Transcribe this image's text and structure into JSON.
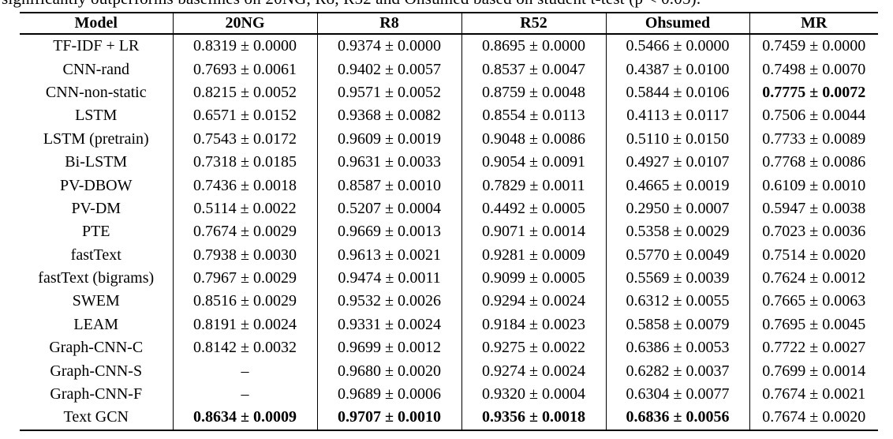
{
  "caption": {
    "clipped_line": "significantly outperforms baselines on 20NG, R8, R52 and Ohsumed based on student t-test (p < 0.05)."
  },
  "colors": {
    "text": "#000000",
    "background": "#ffffff",
    "rule": "#000000"
  },
  "table": {
    "columns": [
      {
        "key": "model",
        "label": "Model"
      },
      {
        "key": "20ng",
        "label": "20NG"
      },
      {
        "key": "r8",
        "label": "R8"
      },
      {
        "key": "r52",
        "label": "R52"
      },
      {
        "key": "ohsumed",
        "label": "Ohsumed"
      },
      {
        "key": "mr",
        "label": "MR"
      }
    ],
    "rows": [
      {
        "cells": [
          {
            "text": "TF-IDF + LR",
            "bold": false
          },
          {
            "text": "0.8319 ± 0.0000",
            "bold": false
          },
          {
            "text": "0.9374 ± 0.0000",
            "bold": false
          },
          {
            "text": "0.8695 ± 0.0000",
            "bold": false
          },
          {
            "text": "0.5466 ± 0.0000",
            "bold": false
          },
          {
            "text": "0.7459 ± 0.0000",
            "bold": false
          }
        ]
      },
      {
        "cells": [
          {
            "text": "CNN-rand",
            "bold": false
          },
          {
            "text": "0.7693 ± 0.0061",
            "bold": false
          },
          {
            "text": "0.9402 ± 0.0057",
            "bold": false
          },
          {
            "text": "0.8537 ± 0.0047",
            "bold": false
          },
          {
            "text": "0.4387 ± 0.0100",
            "bold": false
          },
          {
            "text": "0.7498 ± 0.0070",
            "bold": false
          }
        ]
      },
      {
        "cells": [
          {
            "text": "CNN-non-static",
            "bold": false
          },
          {
            "text": "0.8215 ± 0.0052",
            "bold": false
          },
          {
            "text": "0.9571 ± 0.0052",
            "bold": false
          },
          {
            "text": "0.8759 ± 0.0048",
            "bold": false
          },
          {
            "text": "0.5844 ± 0.0106",
            "bold": false
          },
          {
            "text": "0.7775 ± 0.0072",
            "bold": true
          }
        ]
      },
      {
        "cells": [
          {
            "text": "LSTM",
            "bold": false
          },
          {
            "text": "0.6571 ± 0.0152",
            "bold": false
          },
          {
            "text": "0.9368 ± 0.0082",
            "bold": false
          },
          {
            "text": "0.8554 ± 0.0113",
            "bold": false
          },
          {
            "text": "0.4113 ± 0.0117",
            "bold": false
          },
          {
            "text": "0.7506 ± 0.0044",
            "bold": false
          }
        ]
      },
      {
        "cells": [
          {
            "text": "LSTM (pretrain)",
            "bold": false
          },
          {
            "text": "0.7543 ± 0.0172",
            "bold": false
          },
          {
            "text": "0.9609 ± 0.0019",
            "bold": false
          },
          {
            "text": "0.9048 ± 0.0086",
            "bold": false
          },
          {
            "text": "0.5110 ± 0.0150",
            "bold": false
          },
          {
            "text": "0.7733 ± 0.0089",
            "bold": false
          }
        ]
      },
      {
        "cells": [
          {
            "text": "Bi-LSTM",
            "bold": false
          },
          {
            "text": "0.7318 ± 0.0185",
            "bold": false
          },
          {
            "text": "0.9631 ± 0.0033",
            "bold": false
          },
          {
            "text": "0.9054 ± 0.0091",
            "bold": false
          },
          {
            "text": "0.4927 ± 0.0107",
            "bold": false
          },
          {
            "text": "0.7768 ± 0.0086",
            "bold": false
          }
        ]
      },
      {
        "cells": [
          {
            "text": "PV-DBOW",
            "bold": false
          },
          {
            "text": "0.7436 ± 0.0018",
            "bold": false
          },
          {
            "text": "0.8587 ± 0.0010",
            "bold": false
          },
          {
            "text": "0.7829 ± 0.0011",
            "bold": false
          },
          {
            "text": "0.4665 ± 0.0019",
            "bold": false
          },
          {
            "text": "0.6109 ± 0.0010",
            "bold": false
          }
        ]
      },
      {
        "cells": [
          {
            "text": "PV-DM",
            "bold": false
          },
          {
            "text": "0.5114 ± 0.0022",
            "bold": false
          },
          {
            "text": "0.5207 ± 0.0004",
            "bold": false
          },
          {
            "text": "0.4492 ± 0.0005",
            "bold": false
          },
          {
            "text": "0.2950 ± 0.0007",
            "bold": false
          },
          {
            "text": "0.5947 ± 0.0038",
            "bold": false
          }
        ]
      },
      {
        "cells": [
          {
            "text": "PTE",
            "bold": false
          },
          {
            "text": "0.7674 ± 0.0029",
            "bold": false
          },
          {
            "text": "0.9669 ± 0.0013",
            "bold": false
          },
          {
            "text": "0.9071 ± 0.0014",
            "bold": false
          },
          {
            "text": "0.5358 ± 0.0029",
            "bold": false
          },
          {
            "text": "0.7023 ± 0.0036",
            "bold": false
          }
        ]
      },
      {
        "cells": [
          {
            "text": "fastText",
            "bold": false
          },
          {
            "text": "0.7938 ± 0.0030",
            "bold": false
          },
          {
            "text": "0.9613 ± 0.0021",
            "bold": false
          },
          {
            "text": "0.9281 ± 0.0009",
            "bold": false
          },
          {
            "text": "0.5770 ± 0.0049",
            "bold": false
          },
          {
            "text": "0.7514 ± 0.0020",
            "bold": false
          }
        ]
      },
      {
        "cells": [
          {
            "text": "fastText (bigrams)",
            "bold": false
          },
          {
            "text": "0.7967 ± 0.0029",
            "bold": false
          },
          {
            "text": "0.9474 ± 0.0011",
            "bold": false
          },
          {
            "text": "0.9099 ± 0.0005",
            "bold": false
          },
          {
            "text": "0.5569 ± 0.0039",
            "bold": false
          },
          {
            "text": "0.7624 ± 0.0012",
            "bold": false
          }
        ]
      },
      {
        "cells": [
          {
            "text": "SWEM",
            "bold": false
          },
          {
            "text": "0.8516 ± 0.0029",
            "bold": false
          },
          {
            "text": "0.9532 ± 0.0026",
            "bold": false
          },
          {
            "text": "0.9294 ± 0.0024",
            "bold": false
          },
          {
            "text": "0.6312 ± 0.0055",
            "bold": false
          },
          {
            "text": "0.7665 ± 0.0063",
            "bold": false
          }
        ]
      },
      {
        "cells": [
          {
            "text": "LEAM",
            "bold": false
          },
          {
            "text": "0.8191 ± 0.0024",
            "bold": false
          },
          {
            "text": "0.9331 ± 0.0024",
            "bold": false
          },
          {
            "text": "0.9184 ± 0.0023",
            "bold": false
          },
          {
            "text": "0.5858 ± 0.0079",
            "bold": false
          },
          {
            "text": "0.7695 ± 0.0045",
            "bold": false
          }
        ]
      },
      {
        "cells": [
          {
            "text": "Graph-CNN-C",
            "bold": false
          },
          {
            "text": "0.8142 ± 0.0032",
            "bold": false
          },
          {
            "text": "0.9699 ± 0.0012",
            "bold": false
          },
          {
            "text": "0.9275 ± 0.0022",
            "bold": false
          },
          {
            "text": "0.6386 ± 0.0053",
            "bold": false
          },
          {
            "text": "0.7722 ± 0.0027",
            "bold": false
          }
        ]
      },
      {
        "cells": [
          {
            "text": "Graph-CNN-S",
            "bold": false
          },
          {
            "text": "–",
            "bold": false
          },
          {
            "text": "0.9680 ± 0.0020",
            "bold": false
          },
          {
            "text": "0.9274 ± 0.0024",
            "bold": false
          },
          {
            "text": "0.6282 ± 0.0037",
            "bold": false
          },
          {
            "text": "0.7699 ± 0.0014",
            "bold": false
          }
        ]
      },
      {
        "cells": [
          {
            "text": "Graph-CNN-F",
            "bold": false
          },
          {
            "text": "–",
            "bold": false
          },
          {
            "text": "0.9689 ± 0.0006",
            "bold": false
          },
          {
            "text": "0.9320 ± 0.0004",
            "bold": false
          },
          {
            "text": "0.6304 ± 0.0077",
            "bold": false
          },
          {
            "text": "0.7674 ± 0.0021",
            "bold": false
          }
        ]
      },
      {
        "cells": [
          {
            "text": "Text GCN",
            "bold": false
          },
          {
            "text": "0.8634 ± 0.0009",
            "bold": true
          },
          {
            "text": "0.9707 ± 0.0010",
            "bold": true
          },
          {
            "text": "0.9356 ± 0.0018",
            "bold": true
          },
          {
            "text": "0.6836 ± 0.0056",
            "bold": true
          },
          {
            "text": "0.7674 ± 0.0020",
            "bold": false
          }
        ]
      }
    ]
  }
}
